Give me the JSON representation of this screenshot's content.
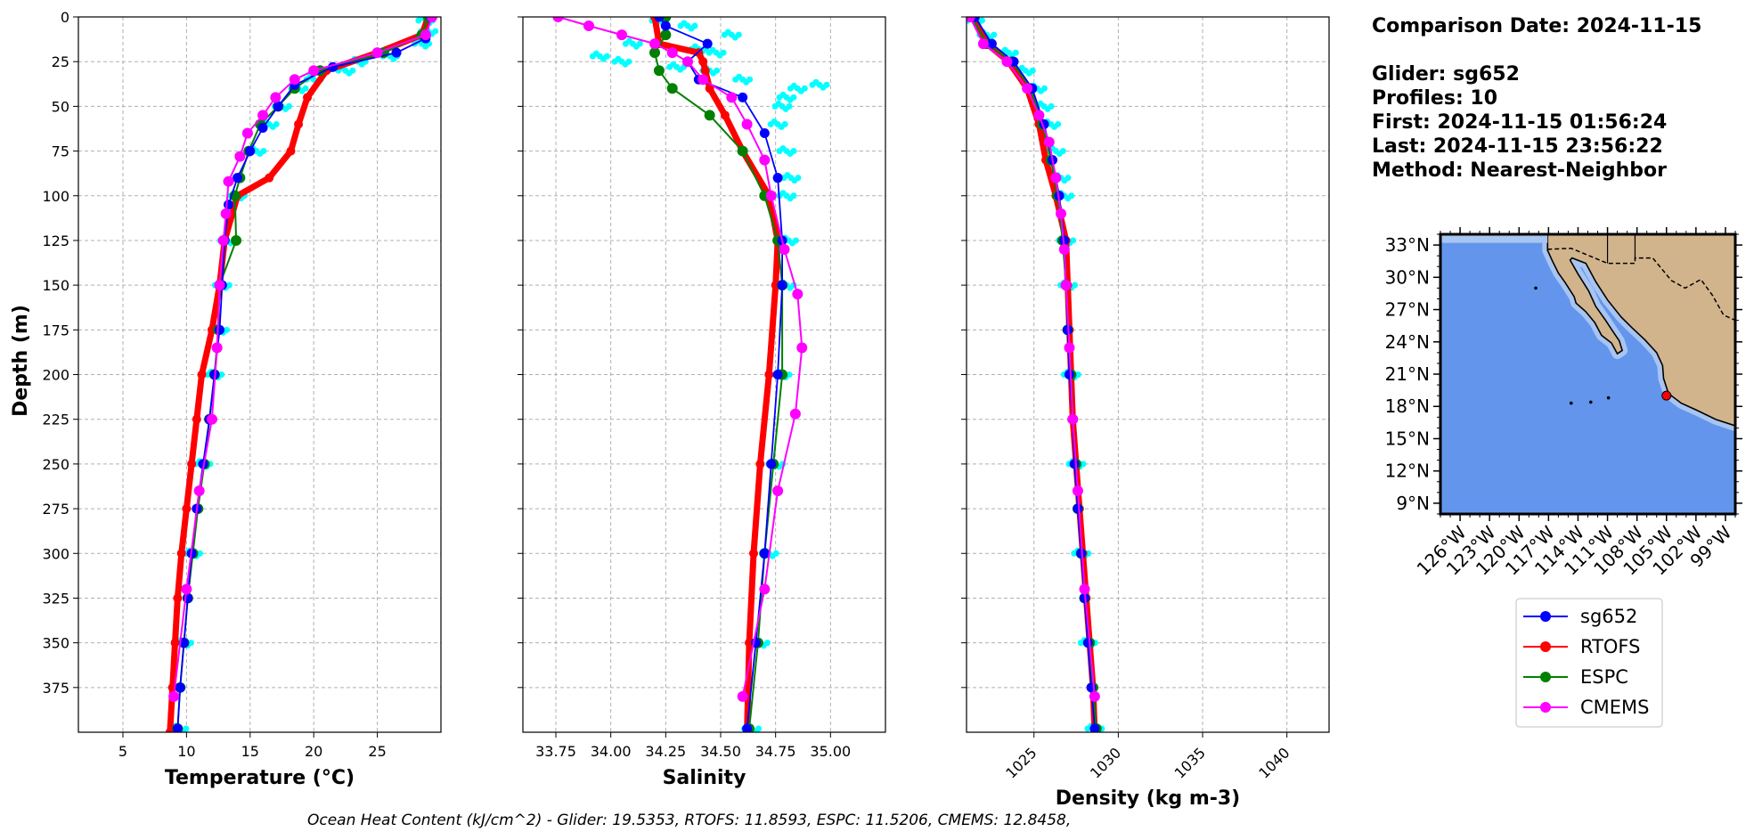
{
  "info": {
    "comparison_date": "Comparison Date: 2024-11-15",
    "glider": "Glider: sg652",
    "profiles": "Profiles: 10",
    "first": "First: 2024-11-15 01:56:24",
    "last": "Last: 2024-11-15 23:56:22",
    "method": "Method: Nearest-Neighbor"
  },
  "footer": "Ocean Heat Content (kJ/cm^2) - Glider: 19.5353,  RTOFS: 11.8593,  ESPC: 11.5206,  CMEMS: 12.8458,",
  "colors": {
    "sg652": "#0000ff",
    "RTOFS": "#ff0000",
    "ESPC": "#008000",
    "CMEMS": "#ff00ff",
    "raw": "#00ffff",
    "ocean": "#6495ed",
    "shelf": "#a7c5f0",
    "land": "#d2b48c"
  },
  "legend": [
    "sg652",
    "RTOFS",
    "ESPC",
    "CMEMS"
  ],
  "map": {
    "lat_ticks": [
      "33°N",
      "30°N",
      "27°N",
      "24°N",
      "21°N",
      "18°N",
      "15°N",
      "12°N",
      "9°N"
    ],
    "lon_ticks": [
      "126°W",
      "123°W",
      "120°W",
      "117°W",
      "114°W",
      "111°W",
      "108°W",
      "105°W",
      "102°W",
      "99°W"
    ],
    "glider_position": {
      "lon": -105.0,
      "lat": 19.0
    }
  },
  "chart_data": [
    {
      "type": "line",
      "xlabel": "Temperature (°C)",
      "ylabel": "Depth (m)",
      "xlim": [
        1.5,
        30
      ],
      "ylim": [
        400,
        0
      ],
      "xticks": [
        5,
        10,
        15,
        20,
        25
      ],
      "yticks": [
        0,
        25,
        50,
        75,
        100,
        125,
        150,
        175,
        200,
        225,
        250,
        275,
        300,
        325,
        350,
        375
      ],
      "grid": true,
      "series": [
        {
          "name": "sg652",
          "depth": [
            0,
            12,
            20,
            28,
            38,
            50,
            62,
            75,
            90,
            105,
            125,
            150,
            175,
            200,
            225,
            250,
            275,
            300,
            325,
            350,
            375,
            398
          ],
          "values": [
            29.2,
            28.8,
            26.5,
            21.5,
            18.5,
            17.2,
            16.0,
            15.0,
            14.0,
            13.3,
            13.0,
            12.8,
            12.6,
            12.2,
            11.8,
            11.3,
            10.8,
            10.4,
            10.1,
            9.8,
            9.5,
            9.3
          ]
        },
        {
          "name": "RTOFS",
          "depth": [
            0,
            10,
            20,
            30,
            45,
            60,
            75,
            90,
            100,
            125,
            150,
            175,
            200,
            225,
            250,
            275,
            300,
            325,
            350,
            375,
            400
          ],
          "values": [
            29.0,
            28.5,
            25.0,
            21.0,
            19.5,
            18.8,
            18.2,
            16.5,
            14.0,
            13.0,
            12.6,
            12.0,
            11.2,
            10.8,
            10.4,
            10.0,
            9.6,
            9.3,
            9.1,
            8.9,
            8.7
          ]
        },
        {
          "name": "ESPC",
          "depth": [
            0,
            10,
            20,
            30,
            40,
            50,
            60,
            75,
            90,
            100,
            125,
            150,
            175,
            200,
            225,
            250,
            275,
            300,
            325,
            350,
            375,
            398
          ],
          "values": [
            29.0,
            28.5,
            25.5,
            20.5,
            18.5,
            17.2,
            15.8,
            14.9,
            14.2,
            13.8,
            13.9,
            12.6,
            12.5,
            12.2,
            11.8,
            11.4,
            10.9,
            10.5,
            10.1,
            9.8,
            9.5,
            9.3
          ]
        },
        {
          "name": "CMEMS",
          "depth": [
            0,
            10,
            20,
            30,
            35,
            45,
            55,
            65,
            78,
            92,
            110,
            125,
            150,
            185,
            225,
            265,
            320,
            380
          ],
          "values": [
            29.3,
            28.8,
            25.0,
            20.0,
            18.5,
            17.0,
            16.0,
            14.8,
            14.2,
            13.3,
            13.1,
            12.9,
            12.6,
            12.4,
            12.0,
            11.0,
            10.0,
            9.0
          ]
        }
      ],
      "raw_scatter": {
        "name": "raw",
        "depth": [
          2,
          8,
          15,
          22,
          25,
          30,
          35,
          40,
          50,
          60,
          75,
          100,
          125,
          150,
          175,
          200,
          250,
          300,
          350,
          398
        ],
        "values": [
          28.8,
          29.0,
          28.5,
          26.0,
          23.5,
          22.5,
          20.0,
          18.8,
          17.5,
          16.5,
          15.5,
          14.0,
          13.2,
          12.8,
          12.6,
          12.2,
          11.3,
          10.5,
          9.8,
          9.4
        ]
      }
    },
    {
      "type": "line",
      "xlabel": "Salinity",
      "xlim": [
        33.6,
        35.25
      ],
      "ylim": [
        400,
        0
      ],
      "xticks": [
        33.75,
        34.0,
        34.25,
        34.5,
        34.75,
        35.0
      ],
      "xtick_labels": [
        "33.75",
        "34.00",
        "34.25",
        "34.50",
        "34.75",
        "35.00"
      ],
      "grid": true,
      "series": [
        {
          "name": "sg652",
          "depth": [
            0,
            5,
            15,
            25,
            35,
            45,
            65,
            90,
            125,
            150,
            200,
            250,
            300,
            350,
            398
          ],
          "values": [
            34.22,
            34.25,
            34.44,
            34.35,
            34.4,
            34.6,
            34.7,
            34.76,
            34.78,
            34.78,
            34.76,
            34.73,
            34.7,
            34.66,
            34.62
          ]
        },
        {
          "name": "RTOFS",
          "depth": [
            0,
            15,
            20,
            25,
            30,
            40,
            55,
            75,
            100,
            125,
            150,
            200,
            250,
            300,
            350,
            400
          ],
          "values": [
            34.2,
            34.22,
            34.4,
            34.42,
            34.43,
            34.45,
            34.52,
            34.6,
            34.72,
            34.76,
            34.75,
            34.72,
            34.68,
            34.65,
            34.63,
            34.62
          ]
        },
        {
          "name": "ESPC",
          "depth": [
            0,
            10,
            20,
            30,
            40,
            55,
            75,
            100,
            125,
            150,
            200,
            250,
            300,
            350,
            398
          ],
          "values": [
            34.25,
            34.25,
            34.2,
            34.22,
            34.28,
            34.45,
            34.6,
            34.7,
            34.76,
            34.78,
            34.78,
            34.74,
            34.7,
            34.67,
            34.63
          ]
        },
        {
          "name": "CMEMS",
          "depth": [
            0,
            5,
            10,
            15,
            20,
            25,
            35,
            45,
            60,
            80,
            100,
            130,
            155,
            185,
            222,
            265,
            320,
            380
          ],
          "values": [
            33.76,
            33.9,
            34.05,
            34.2,
            34.28,
            34.35,
            34.42,
            34.55,
            34.62,
            34.7,
            34.73,
            34.79,
            34.85,
            34.87,
            34.84,
            34.76,
            34.7,
            34.6
          ]
        }
      ],
      "raw_scatter": {
        "name": "raw",
        "depth": [
          2,
          5,
          10,
          15,
          18,
          20,
          22,
          25,
          28,
          30,
          35,
          38,
          40,
          45,
          50,
          60,
          75,
          90,
          100,
          125,
          150,
          200,
          250,
          300,
          350,
          398
        ],
        "values": [
          34.22,
          34.35,
          34.55,
          34.1,
          34.4,
          34.48,
          33.95,
          34.05,
          34.3,
          34.45,
          34.6,
          34.95,
          34.85,
          34.8,
          34.78,
          34.76,
          34.8,
          34.82,
          34.8,
          34.81,
          34.8,
          34.78,
          34.75,
          34.72,
          34.68,
          34.64
        ]
      }
    },
    {
      "type": "line",
      "xlabel": "Density (kg m-3)",
      "xlim": [
        1021,
        1042.5
      ],
      "ylim": [
        400,
        0
      ],
      "xticks": [
        1025,
        1030,
        1035,
        1040
      ],
      "grid": true,
      "series": [
        {
          "name": "sg652",
          "depth": [
            0,
            15,
            25,
            40,
            60,
            80,
            100,
            125,
            150,
            175,
            200,
            225,
            250,
            275,
            300,
            325,
            350,
            375,
            398
          ],
          "values": [
            1021.5,
            1022.5,
            1023.8,
            1024.9,
            1025.6,
            1026.1,
            1026.5,
            1026.8,
            1026.9,
            1027.0,
            1027.1,
            1027.3,
            1027.4,
            1027.6,
            1027.8,
            1028.0,
            1028.2,
            1028.4,
            1028.6
          ]
        },
        {
          "name": "RTOFS",
          "depth": [
            0,
            15,
            25,
            40,
            60,
            80,
            100,
            125,
            150,
            175,
            200,
            225,
            250,
            275,
            300,
            325,
            350,
            375,
            400
          ],
          "values": [
            1021.4,
            1022.2,
            1023.5,
            1024.6,
            1025.3,
            1025.7,
            1026.3,
            1026.9,
            1027.0,
            1027.1,
            1027.2,
            1027.3,
            1027.5,
            1027.7,
            1027.9,
            1028.1,
            1028.3,
            1028.5,
            1028.6
          ]
        },
        {
          "name": "ESPC",
          "depth": [
            0,
            15,
            25,
            40,
            60,
            80,
            100,
            125,
            150,
            175,
            200,
            225,
            250,
            275,
            300,
            325,
            350,
            375,
            398
          ],
          "values": [
            1021.3,
            1022.2,
            1023.7,
            1024.8,
            1025.5,
            1026.0,
            1026.4,
            1026.7,
            1026.9,
            1027.0,
            1027.2,
            1027.3,
            1027.5,
            1027.6,
            1027.8,
            1028.0,
            1028.3,
            1028.5,
            1028.7
          ]
        },
        {
          "name": "CMEMS",
          "depth": [
            0,
            15,
            25,
            40,
            55,
            70,
            90,
            110,
            130,
            150,
            185,
            225,
            265,
            320,
            380
          ],
          "values": [
            1021.2,
            1022.0,
            1023.4,
            1024.6,
            1025.3,
            1025.9,
            1026.3,
            1026.6,
            1026.8,
            1026.9,
            1027.1,
            1027.3,
            1027.6,
            1028.0,
            1028.6
          ]
        }
      ],
      "raw_scatter": {
        "name": "raw",
        "depth": [
          2,
          10,
          20,
          30,
          40,
          50,
          60,
          75,
          90,
          100,
          125,
          150,
          200,
          250,
          300,
          350,
          398
        ],
        "values": [
          1021.5,
          1022.2,
          1023.5,
          1024.5,
          1025.2,
          1025.6,
          1026.0,
          1026.3,
          1026.6,
          1026.8,
          1026.9,
          1027.0,
          1027.2,
          1027.5,
          1027.8,
          1028.2,
          1028.6
        ]
      }
    }
  ]
}
